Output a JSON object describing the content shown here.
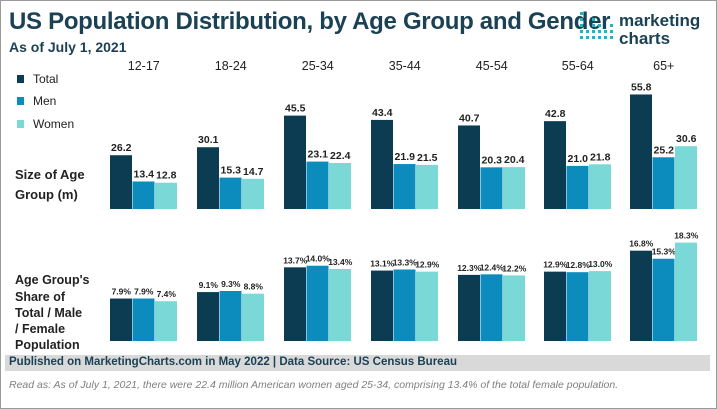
{
  "header": {
    "title": "US Population Distribution, by Age Group and Gender",
    "subtitle": "As of July 1, 2021"
  },
  "logo": {
    "line1": "marketing",
    "line2": "charts"
  },
  "colors": {
    "total": "#0c3c52",
    "men": "#0b8cbd",
    "women": "#7ad8d6",
    "text": "#1b4155"
  },
  "chart_data": [
    {
      "type": "bar",
      "title": "Size of Age Group (m)",
      "row_label_lines": [
        "Size of Age",
        "Group (m)"
      ],
      "categories": [
        "12-17",
        "18-24",
        "25-34",
        "35-44",
        "45-54",
        "55-64",
        "65+"
      ],
      "series": [
        {
          "name": "Total",
          "values": [
            26.2,
            30.1,
            45.5,
            43.4,
            40.7,
            42.8,
            55.8
          ],
          "labels": [
            "26.2",
            "30.1",
            "45.5",
            "43.4",
            "40.7",
            "42.8",
            "55.8"
          ]
        },
        {
          "name": "Men",
          "values": [
            13.4,
            15.3,
            23.1,
            21.9,
            20.3,
            21.0,
            25.2
          ],
          "labels": [
            "13.4",
            "15.3",
            "23.1",
            "21.9",
            "20.3",
            "21.0",
            "25.2"
          ]
        },
        {
          "name": "Women",
          "values": [
            12.8,
            14.7,
            22.4,
            21.5,
            20.4,
            21.8,
            30.6
          ],
          "labels": [
            "12.8",
            "14.7",
            "22.4",
            "21.5",
            "20.4",
            "21.8",
            "30.6"
          ]
        }
      ],
      "ylim": [
        0,
        57
      ]
    },
    {
      "type": "bar",
      "title": "Age Group's Share of Total / Male / Female Population",
      "row_label_lines": [
        "Age Group's",
        "Share of",
        "Total / Male",
        "/ Female",
        "Population"
      ],
      "categories": [
        "12-17",
        "18-24",
        "25-34",
        "35-44",
        "45-54",
        "55-64",
        "65+"
      ],
      "series": [
        {
          "name": "Total",
          "values": [
            7.9,
            9.1,
            13.7,
            13.1,
            12.3,
            12.9,
            16.8
          ],
          "labels": [
            "7.9%",
            "9.1%",
            "13.7%",
            "13.1%",
            "12.3%",
            "12.9%",
            "16.8%"
          ]
        },
        {
          "name": "Men",
          "values": [
            7.9,
            9.3,
            14.0,
            13.3,
            12.4,
            12.8,
            15.3
          ],
          "labels": [
            "7.9%",
            "9.3%",
            "14.0%",
            "13.3%",
            "12.4%",
            "12.8%",
            "15.3%"
          ]
        },
        {
          "name": "Women",
          "values": [
            7.4,
            8.8,
            13.4,
            12.9,
            12.2,
            13.0,
            18.3
          ],
          "labels": [
            "7.4%",
            "8.8%",
            "13.4%",
            "12.9%",
            "12.2%",
            "13.0%",
            "18.3%"
          ]
        }
      ],
      "ylim": [
        0,
        18.6
      ]
    }
  ],
  "footer": {
    "text": "Published on MarketingCharts.com in May 2022 | Data Source: US Census Bureau",
    "read_as": "Read as: As of July 1, 2021, there were 22.4 million American women aged 25-34, comprising 13.4% of the total female population."
  }
}
